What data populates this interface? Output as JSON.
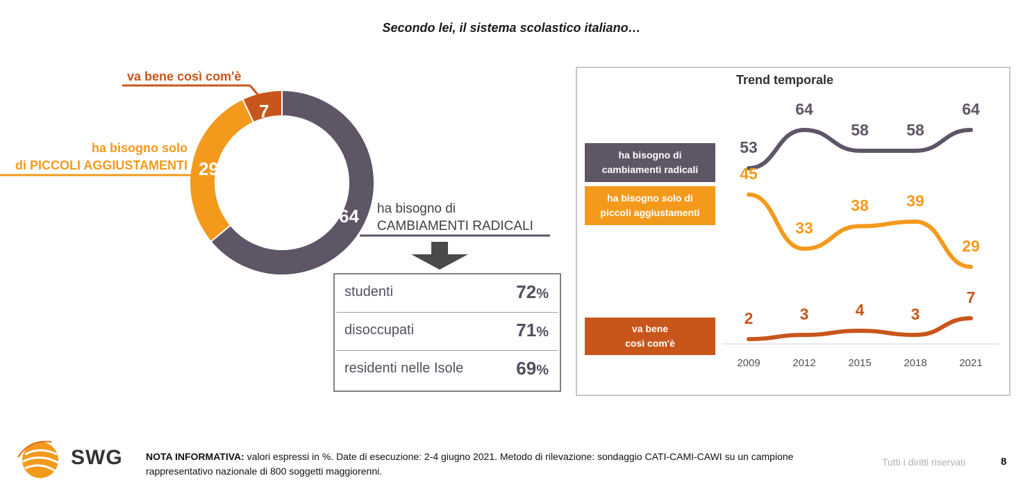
{
  "title": "Secondo lei, il sistema scolastico italiano…",
  "chart_data": [
    {
      "type": "pie",
      "slices": [
        {
          "label": "ha bisogno di CAMBIAMENTI RADICALI",
          "value": 64,
          "color": "#5E5567"
        },
        {
          "label": "ha bisogno solo di PICCOLI AGGIUSTAMENTI",
          "value": 29,
          "color": "#F39A1D"
        },
        {
          "label": "va bene così com'è",
          "value": 7,
          "color": "#C8561B"
        }
      ],
      "labels": {
        "radical_line1": "ha bisogno di",
        "radical_line2": "CAMBIAMENTI RADICALI",
        "small_line1": "ha bisogno solo",
        "small_line2": "di PICCOLI AGGIUSTAMENTI",
        "fine": "va bene così com'è"
      },
      "values_text": {
        "radical": "64",
        "small": "29",
        "fine": "7"
      }
    },
    {
      "type": "line",
      "title": "Trend temporale",
      "x": [
        "2009",
        "2012",
        "2015",
        "2018",
        "2021"
      ],
      "series": [
        {
          "name": "ha bisogno di cambiamenti radicali",
          "values": [
            53,
            64,
            58,
            58,
            64
          ],
          "color": "#5E5567"
        },
        {
          "name": "ha bisogno solo di piccoli aggiustamenti",
          "values": [
            45,
            33,
            38,
            39,
            29
          ],
          "color": "#F39A1D"
        },
        {
          "name": "va bene così com'è",
          "values": [
            2,
            3,
            4,
            3,
            7
          ],
          "color": "#C8561B"
        }
      ]
    }
  ],
  "breakdown": {
    "rows": [
      {
        "label": "studenti",
        "value": "72",
        "unit": "%"
      },
      {
        "label": "disoccupati",
        "value": "71",
        "unit": "%"
      },
      {
        "label": "residenti nelle Isole",
        "value": "69",
        "unit": "%"
      }
    ]
  },
  "legend": {
    "radical_line1": "ha bisogno di",
    "radical_line2": "cambiamenti radicali",
    "small_line1": "ha bisogno solo di",
    "small_line2": "piccoli aggiustamenti",
    "fine_line1": "va bene",
    "fine_line2": "così com'è"
  },
  "footer": {
    "logo": "SWG",
    "note_bold": "NOTA INFORMATIVA:",
    "note_text": " valori espressi in %. Date di esecuzione: 2-4 giugno 2021. Metodo di rilevazione: sondaggio CATI-CAMI-CAWI su un campione rappresentativo nazionale di 800 soggetti maggiorenni.",
    "rights": "Tutti i diritti riservati",
    "page": "8"
  }
}
